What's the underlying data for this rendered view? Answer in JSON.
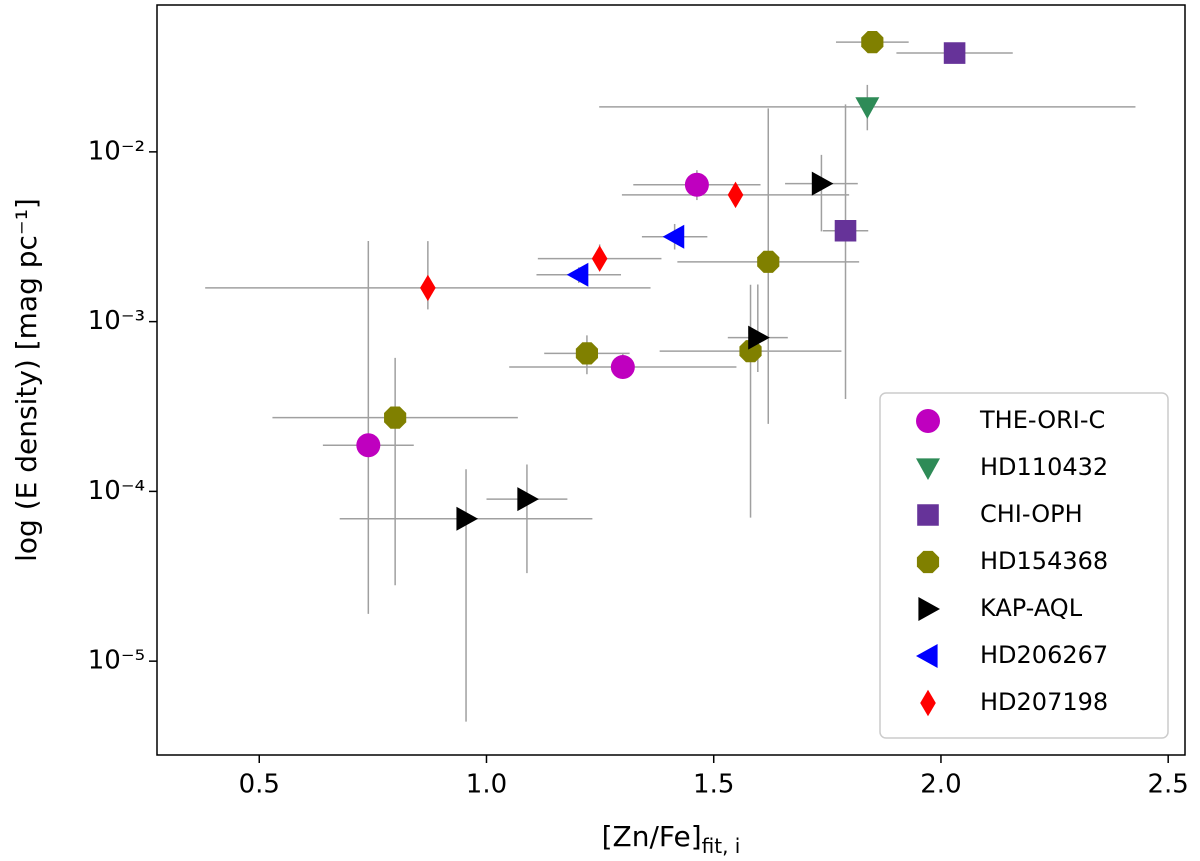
{
  "chart_data": {
    "type": "scatter",
    "ylog": true,
    "xlabel": "[Zn/Fe]",
    "xlabel_sub": "fit, i",
    "ylabel": "log (E density) [mag pc⁻¹]",
    "xlim": [
      0.275,
      2.537
    ],
    "ylim": [
      2.8e-06,
      0.0733
    ],
    "xticks": [
      0.5,
      {
        "value": 1,
        "label": "1.0"
      },
      1.5,
      {
        "value": 2,
        "label": "2.0"
      },
      2.5
    ],
    "yticks": [
      {
        "value": 1e-05,
        "label": "10⁻⁵"
      },
      {
        "value": 0.0001,
        "label": "10⁻⁴"
      },
      {
        "value": 0.001,
        "label": "10⁻³"
      },
      {
        "value": 0.01,
        "label": "10⁻²"
      }
    ],
    "legend": "lower right",
    "errorbar_color": "#a0a0a0",
    "series": [
      {
        "name": "THE-ORI-C",
        "color": "#bf00bf",
        "marker": "circle",
        "x": [
          1.463,
          1.3,
          0.74
        ],
        "values": [
          0.0064,
          0.00054,
          0.000187
        ],
        "xerr": [
          0.14,
          0.25,
          0.1
        ],
        "yerr": [
          [
            0.0012,
            0.0014
          ],
          [
            8e-05,
            0.00011
          ],
          [
            0.000168,
            0.0028
          ]
        ]
      },
      {
        "name": "HD110432",
        "color": "#2e8b57",
        "marker": "triangle_down",
        "x": [
          1.838
        ],
        "values": [
          0.0184
        ],
        "xerr": [
          0.59
        ],
        "yerr": [
          [
            0.005,
            0.0064
          ]
        ]
      },
      {
        "name": "CHI-OPH",
        "color": "#663399",
        "marker": "square",
        "x": [
          2.03,
          1.79
        ],
        "values": [
          0.0382,
          0.00343
        ],
        "xerr": [
          0.128,
          0.05
        ],
        "yerr": [
          [
            0.003,
            0.003
          ],
          [
            0.00308,
            0.0156
          ]
        ]
      },
      {
        "name": "HD154368",
        "color": "#808000",
        "marker": "octagon",
        "x": [
          1.849,
          1.62,
          1.221,
          1.581,
          0.799
        ],
        "values": [
          0.0443,
          0.00225,
          0.00065,
          0.00067,
          0.000272
        ],
        "xerr": [
          0.08,
          0.2,
          0.094,
          0.2,
          0.27
        ],
        "yerr": [
          [
            0.003,
            0.003
          ],
          [
            0.002,
            0.0158
          ],
          [
            0.00016,
            0.00018
          ],
          [
            0.0006,
            0.00098
          ],
          [
            0.000244,
            0.00034
          ]
        ]
      },
      {
        "name": "KAP-AQL",
        "color": "#000000",
        "marker": "triangle_right",
        "x": [
          1.737,
          1.597,
          1.089,
          0.955
        ],
        "values": [
          0.0065,
          0.000805,
          9e-05,
          6.9e-05
        ],
        "xerr": [
          0.08,
          0.066,
          0.089,
          0.278
        ],
        "yerr": [
          [
            0.0031,
            0.0031
          ],
          [
            0.0003,
            0.00085
          ],
          [
            5.7e-05,
            5.4e-05
          ],
          [
            6.46e-05,
            6.6e-05
          ]
        ]
      },
      {
        "name": "HD206267",
        "color": "#0000ff",
        "marker": "triangle_left",
        "x": [
          1.414,
          1.203
        ],
        "values": [
          0.00316,
          0.00189
        ],
        "xerr": [
          0.072,
          0.093
        ],
        "yerr": [
          [
            0.0005,
            0.0006
          ],
          [
            0.0002,
            0.0002
          ]
        ]
      },
      {
        "name": "HD207198",
        "color": "#ff0000",
        "marker": "diamond",
        "x": [
          1.548,
          1.249,
          0.871
        ],
        "values": [
          0.00558,
          0.00235,
          0.00158
        ],
        "xerr": [
          0.25,
          0.136,
          0.49
        ],
        "yerr": [
          [
            0.0007,
            0.0008
          ],
          [
            0.0003,
            0.0005
          ],
          [
            0.0004,
            0.0014
          ]
        ]
      }
    ]
  }
}
